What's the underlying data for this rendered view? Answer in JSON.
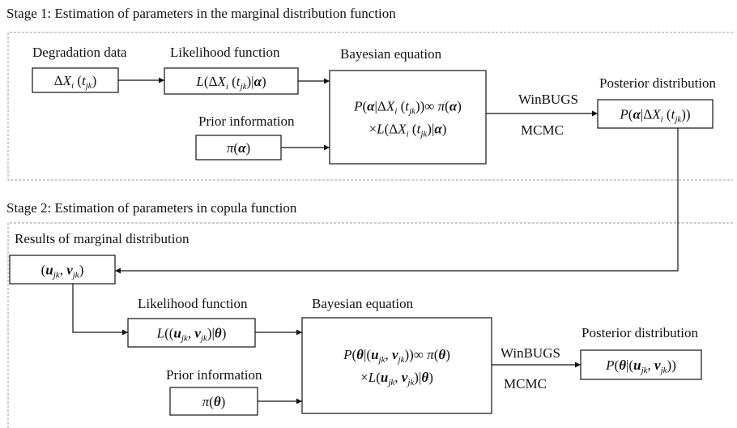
{
  "stage1": {
    "title": "Stage 1: Estimation of parameters in the marginal distribution function",
    "nodes": [
      {
        "label": "Degradation data",
        "lines": [
          [
            {
              "t": "Δ"
            },
            {
              "i": "X"
            },
            {
              "s": "i"
            },
            {
              "t": " ("
            },
            {
              "i": "t"
            },
            {
              "s": "jk"
            },
            {
              "t": ")"
            }
          ]
        ]
      },
      {
        "label": "Likelihood function",
        "lines": [
          [
            {
              "i": "L"
            },
            {
              "t": "(Δ"
            },
            {
              "i": "X"
            },
            {
              "s": "i"
            },
            {
              "t": " ("
            },
            {
              "i": "t"
            },
            {
              "s": "jk"
            },
            {
              "t": ")|"
            },
            {
              "b": "α"
            },
            {
              "t": ")"
            }
          ]
        ]
      },
      {
        "label": "Prior information",
        "lines": [
          [
            {
              "i": "π"
            },
            {
              "t": "("
            },
            {
              "b": "α"
            },
            {
              "t": ")"
            }
          ]
        ]
      },
      {
        "label": "Bayesian equation",
        "lines": [
          [
            {
              "i": "P"
            },
            {
              "t": "("
            },
            {
              "b": "α"
            },
            {
              "t": "|Δ"
            },
            {
              "i": "X"
            },
            {
              "s": "i"
            },
            {
              "t": " ("
            },
            {
              "i": "t"
            },
            {
              "s": "jk"
            },
            {
              "t": "))∞ "
            },
            {
              "i": "π"
            },
            {
              "t": "("
            },
            {
              "b": "α"
            },
            {
              "t": ")"
            }
          ],
          [
            {
              "t": "×"
            },
            {
              "i": "L"
            },
            {
              "t": "(Δ"
            },
            {
              "i": "X"
            },
            {
              "s": "i"
            },
            {
              "t": " ("
            },
            {
              "i": "t"
            },
            {
              "s": "jk"
            },
            {
              "t": ")|"
            },
            {
              "b": "α"
            },
            {
              "t": ")"
            }
          ]
        ]
      },
      {
        "label": "Posterior distribution",
        "lines": [
          [
            {
              "i": "P"
            },
            {
              "t": "("
            },
            {
              "b": "α"
            },
            {
              "t": "|Δ"
            },
            {
              "i": "X"
            },
            {
              "s": "i"
            },
            {
              "t": " ("
            },
            {
              "i": "t"
            },
            {
              "s": "jk"
            },
            {
              "t": "))"
            }
          ]
        ]
      }
    ],
    "edge_labels": [
      "WinBUGS",
      "MCMC"
    ]
  },
  "stage2": {
    "title": "Stage 2: Estimation of parameters in copula function",
    "nodes": [
      {
        "label": "Results of marginal distribution",
        "lines": [
          [
            {
              "t": "("
            },
            {
              "b": "u"
            },
            {
              "s": "jk"
            },
            {
              "t": ", "
            },
            {
              "b": "v"
            },
            {
              "s": "jk"
            },
            {
              "t": ")"
            }
          ]
        ]
      },
      {
        "label": "Likelihood function",
        "lines": [
          [
            {
              "i": "L"
            },
            {
              "t": "(("
            },
            {
              "b": "u"
            },
            {
              "s": "jk"
            },
            {
              "t": ", "
            },
            {
              "b": "v"
            },
            {
              "s": "jk"
            },
            {
              "t": ")|"
            },
            {
              "b": "θ"
            },
            {
              "t": ")"
            }
          ]
        ]
      },
      {
        "label": "Prior information",
        "lines": [
          [
            {
              "i": "π"
            },
            {
              "t": "("
            },
            {
              "b": "θ"
            },
            {
              "t": ")"
            }
          ]
        ]
      },
      {
        "label": "Bayesian equation",
        "lines": [
          [
            {
              "i": "P"
            },
            {
              "t": "("
            },
            {
              "b": "θ"
            },
            {
              "t": "|("
            },
            {
              "b": "u"
            },
            {
              "s": "jk"
            },
            {
              "t": ", "
            },
            {
              "b": "v"
            },
            {
              "s": "jk"
            },
            {
              "t": "))∞ "
            },
            {
              "i": "π"
            },
            {
              "t": "("
            },
            {
              "b": "θ"
            },
            {
              "t": ")"
            }
          ],
          [
            {
              "t": "×"
            },
            {
              "i": "L"
            },
            {
              "t": "("
            },
            {
              "b": "u"
            },
            {
              "s": "jk"
            },
            {
              "t": ", "
            },
            {
              "b": "v"
            },
            {
              "s": "jk"
            },
            {
              "t": ")|"
            },
            {
              "b": "θ"
            },
            {
              "t": ")"
            }
          ]
        ]
      },
      {
        "label": "Posterior distribution",
        "lines": [
          [
            {
              "i": "P"
            },
            {
              "t": "("
            },
            {
              "b": "θ"
            },
            {
              "t": "|("
            },
            {
              "b": "u"
            },
            {
              "s": "jk"
            },
            {
              "t": ", "
            },
            {
              "b": "v"
            },
            {
              "s": "jk"
            },
            {
              "t": "))"
            }
          ]
        ]
      }
    ],
    "edge_labels": [
      "WinBUGS",
      "MCMC"
    ]
  }
}
